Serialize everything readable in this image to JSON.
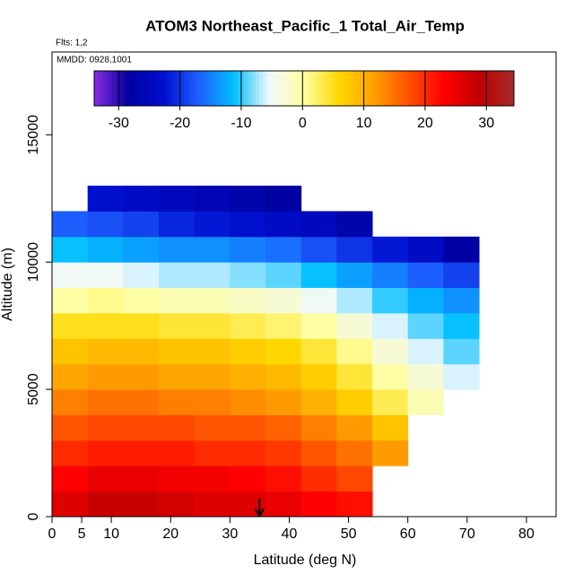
{
  "chart_data": {
    "type": "heatmap",
    "title": "ATOM3 Northeast_Pacific_1 Total_Air_Temp",
    "subtitle": "Flts: 1,2",
    "annotation": "MMDD: 0928,1001",
    "x_label": "Latitude (deg N)",
    "y_label": "Altitude (m)",
    "xlim": [
      0,
      85
    ],
    "ylim": [
      0,
      18250
    ],
    "xticks": [
      0,
      5,
      10,
      20,
      30,
      40,
      50,
      60,
      70,
      80
    ],
    "yticks": [
      0,
      5000,
      10000,
      15000
    ],
    "xbins": [
      0,
      6,
      12,
      18,
      24,
      30,
      36,
      42,
      48,
      54,
      60,
      66,
      72
    ],
    "ybins": [
      0,
      1000,
      2000,
      3000,
      4000,
      5000,
      6000,
      7000,
      8000,
      9000,
      10000,
      11000,
      12000,
      13000
    ],
    "values": [
      [
        26,
        28,
        28,
        27,
        26,
        26,
        25,
        23,
        22,
        null,
        null,
        null
      ],
      [
        23,
        25,
        25,
        24,
        24,
        23,
        22,
        20,
        18,
        null,
        null,
        null
      ],
      [
        20,
        21,
        21,
        21,
        20,
        20,
        19,
        17,
        15,
        12,
        null,
        null
      ],
      [
        17,
        18,
        18,
        18,
        17,
        17,
        16,
        14,
        12,
        8,
        null,
        null
      ],
      [
        14,
        15,
        15,
        14,
        14,
        13,
        12,
        10,
        7,
        3,
        -1,
        null
      ],
      [
        11,
        12,
        12,
        11,
        11,
        10,
        9,
        7,
        4,
        0,
        -3,
        -6
      ],
      [
        8,
        9,
        9,
        8,
        8,
        7,
        6,
        4,
        1,
        -3,
        -6,
        -9
      ],
      [
        5,
        5,
        5,
        4,
        4,
        3,
        2,
        0,
        -3,
        -6,
        -9,
        -11
      ],
      [
        0,
        1,
        0,
        -1,
        -1,
        -2,
        -3,
        -5,
        -7,
        -10,
        -12,
        -14
      ],
      [
        -5,
        -5,
        -6,
        -7,
        -7,
        -8,
        -9,
        -11,
        -13,
        -15,
        -17,
        -19
      ],
      [
        -11,
        -12,
        -13,
        -14,
        -14,
        -15,
        -16,
        -18,
        -20,
        -22,
        -24,
        -28
      ],
      [
        -17,
        -18,
        -19,
        -21,
        -22,
        -23,
        -24,
        -25,
        -27,
        null,
        null,
        null
      ],
      [
        null,
        -23,
        -24,
        -25,
        -26,
        -27,
        -28,
        null,
        null,
        null,
        null,
        null
      ]
    ],
    "zlim": [
      -34,
      34.5
    ],
    "zticks": [
      -30,
      -20,
      -10,
      0,
      10,
      20,
      30
    ],
    "colors": [
      "#8a2be2",
      "#0000a0",
      "#0010d0",
      "#1e60ff",
      "#00bfff",
      "#f0f8ff",
      "#ffffa0",
      "#ffd700",
      "#ffa000",
      "#ff5000",
      "#ff0000",
      "#c00000",
      "#a52a2a"
    ],
    "marker_lat": 35
  }
}
